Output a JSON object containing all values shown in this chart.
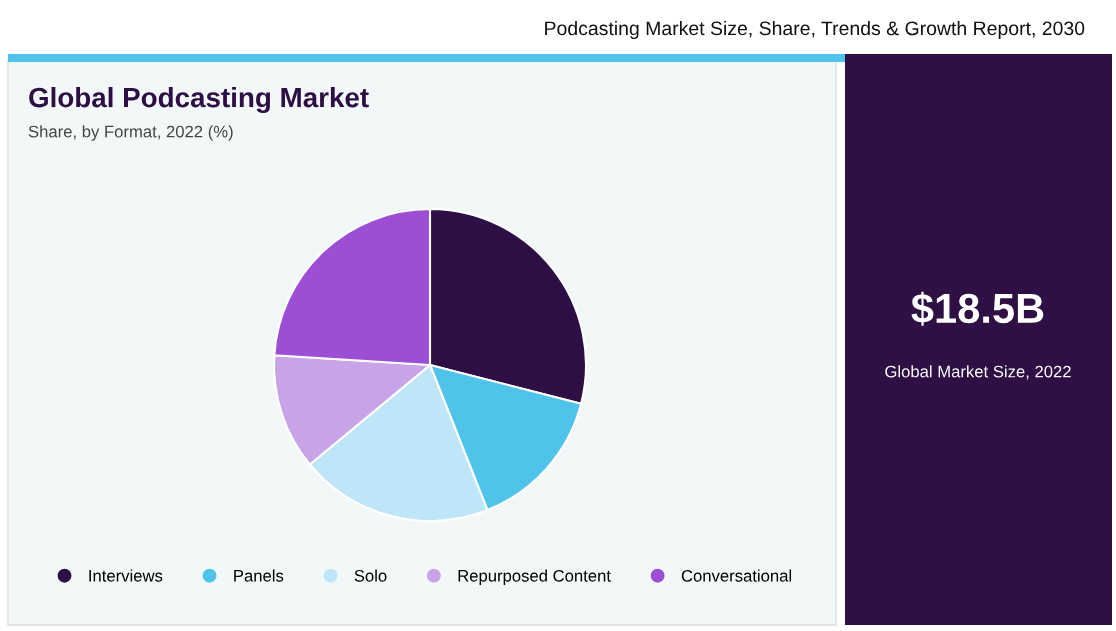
{
  "chart_data": {
    "type": "pie",
    "title": "Global Podcasting Market",
    "subtitle": "Share, by Format, 2022 (%)",
    "categories": [
      "Interviews",
      "Panels",
      "Solo",
      "Repurposed Content",
      "Conversational"
    ],
    "values": [
      29,
      15,
      20,
      12,
      24
    ],
    "colors": [
      "#2e0f45",
      "#4fc3ea",
      "#bfe6f8",
      "#c9a3e8",
      "#9c4fd4"
    ],
    "legend": "bottom",
    "annotations": [
      "Podcasting Market Size, Share, Trends & Growth Report, 2030",
      "$18.5B",
      "Global Market Size, 2022"
    ]
  }
}
